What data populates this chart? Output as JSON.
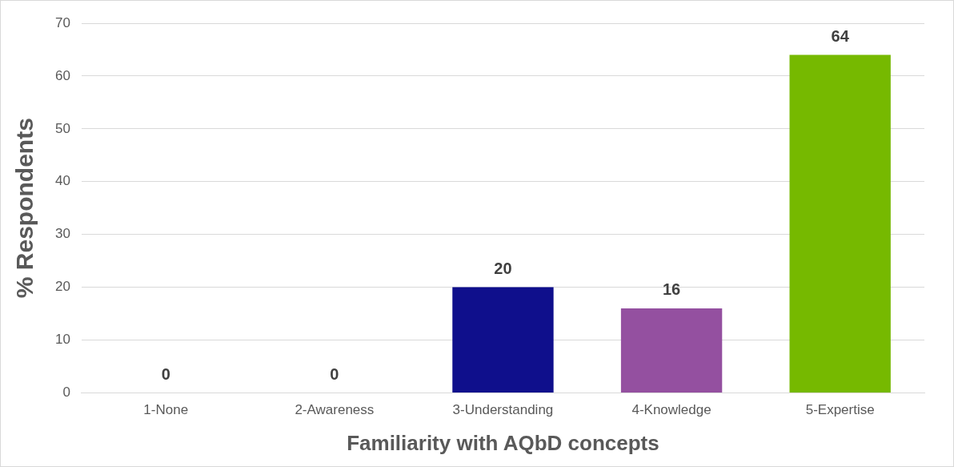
{
  "chart_data": {
    "type": "bar",
    "categories": [
      "1-None",
      "2-Awareness",
      "3-Understanding",
      "4-Knowledge",
      "5-Expertise"
    ],
    "values": [
      0,
      0,
      20,
      16,
      64
    ],
    "colors": [
      "#a5a5a5",
      "#a5a5a5",
      "#0f0f8c",
      "#9450a0",
      "#76b900"
    ],
    "xlabel": "Familiarity with AQbD concepts",
    "ylabel": "% Respondents",
    "ylim": [
      0,
      70
    ],
    "yticks": [
      0,
      10,
      20,
      30,
      40,
      50,
      60,
      70
    ],
    "grid": "y",
    "data_labels": true,
    "legend": false
  }
}
